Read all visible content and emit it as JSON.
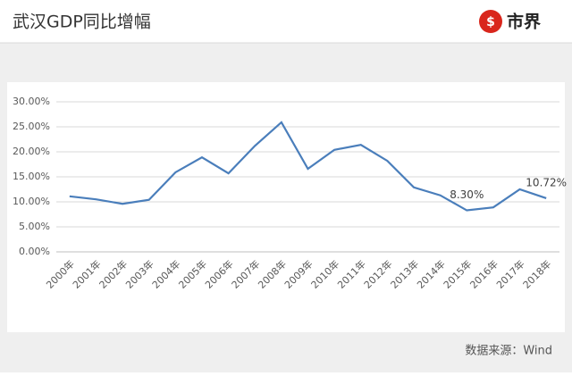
{
  "chart_data": {
    "type": "line",
    "title": "武汉GDP同比增幅",
    "logo": "市界",
    "source": "数据来源：Wind",
    "categories": [
      "2000年",
      "2001年",
      "2002年",
      "2003年",
      "2004年",
      "2005年",
      "2006年",
      "2007年",
      "2008年",
      "2009年",
      "2010年",
      "2011年",
      "2012年",
      "2013年",
      "2014年",
      "2015年",
      "2016年",
      "2017年",
      "2018年"
    ],
    "series": [
      {
        "color": "#4a7ebb",
        "values": [
          11.1,
          10.5,
          9.6,
          10.4,
          15.9,
          18.9,
          15.7,
          21.2,
          25.9,
          16.6,
          20.4,
          21.4,
          18.2,
          12.9,
          11.3,
          8.3,
          8.9,
          12.5,
          10.72
        ],
        "value_labels": [
          null,
          null,
          null,
          null,
          null,
          null,
          null,
          null,
          null,
          null,
          null,
          null,
          null,
          null,
          null,
          "8.30%",
          null,
          null,
          "10.72%"
        ]
      }
    ],
    "ylim": [
      0,
      30
    ],
    "yticks": [
      {
        "value": 0,
        "label": "0.00%"
      },
      {
        "value": 5,
        "label": "5.00%"
      },
      {
        "value": 10,
        "label": "10.00%"
      },
      {
        "value": 15,
        "label": "15.00%"
      },
      {
        "value": 20,
        "label": "20.00%"
      },
      {
        "value": 25,
        "label": "25.00%"
      },
      {
        "value": 30,
        "label": "30.00%"
      }
    ],
    "grid": true
  }
}
